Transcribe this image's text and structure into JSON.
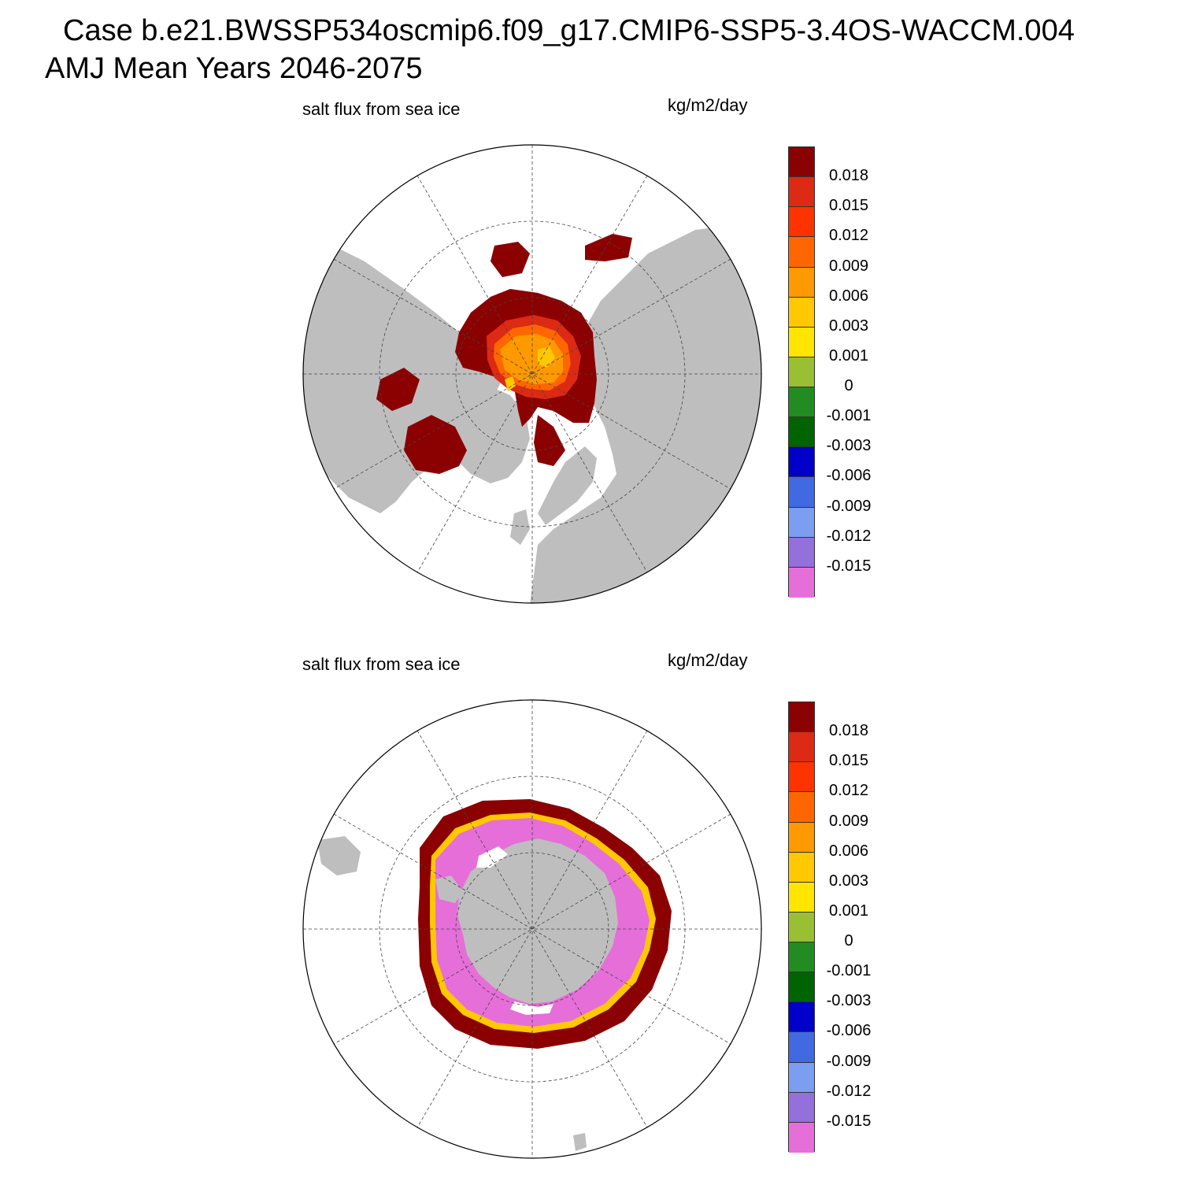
{
  "header": {
    "case_line": "Case b.e21.BWSSP534oscmip6.f09_g17.CMIP6-SSP5-3.4OS-WACCM.004",
    "period_line": "AMJ Mean   Years 2046-2075"
  },
  "panels": [
    {
      "id": "arctic",
      "hemisphere": "north",
      "left_title": "salt flux from sea ice",
      "units": "kg/m2/day"
    },
    {
      "id": "antarctic",
      "hemisphere": "south",
      "left_title": "salt flux from sea ice",
      "units": "kg/m2/day"
    }
  ],
  "colorbar": {
    "colors": [
      "#8b0000",
      "#dc2a14",
      "#ff3300",
      "#ff6600",
      "#ff9900",
      "#ffc800",
      "#ffe500",
      "#99bf33",
      "#228b22",
      "#006400",
      "#0000c8",
      "#4169e1",
      "#7b9ef0",
      "#9370db",
      "#e66ed9"
    ],
    "labels": [
      "0.018",
      "0.015",
      "0.012",
      "0.009",
      "0.006",
      "0.003",
      "0.001",
      "0",
      "-0.001",
      "-0.003",
      "-0.006",
      "-0.009",
      "-0.012",
      "-0.015"
    ]
  },
  "chart_data": [
    {
      "type": "heatmap",
      "title": "salt flux from sea ice",
      "units": "kg/m2/day",
      "projection": "north polar stereographic",
      "contour_levels": [
        -0.015,
        -0.012,
        -0.009,
        -0.006,
        -0.003,
        -0.001,
        0,
        0.001,
        0.003,
        0.006,
        0.009,
        0.012,
        0.015,
        0.018
      ],
      "summary": "Central Arctic basin 0.003 to 0.015 (yellow-orange core), marginal seas and coasts above 0.018"
    },
    {
      "type": "heatmap",
      "title": "salt flux from sea ice",
      "units": "kg/m2/day",
      "projection": "south polar stereographic",
      "contour_levels": [
        -0.015,
        -0.012,
        -0.009,
        -0.006,
        -0.003,
        -0.001,
        0,
        0.001,
        0.003,
        0.006,
        0.009,
        0.012,
        0.015,
        0.018
      ],
      "summary": "Outer ice-pack ring above 0.018; Weddell and Ross seas below -0.015; thin transition band near the ice edge"
    }
  ]
}
